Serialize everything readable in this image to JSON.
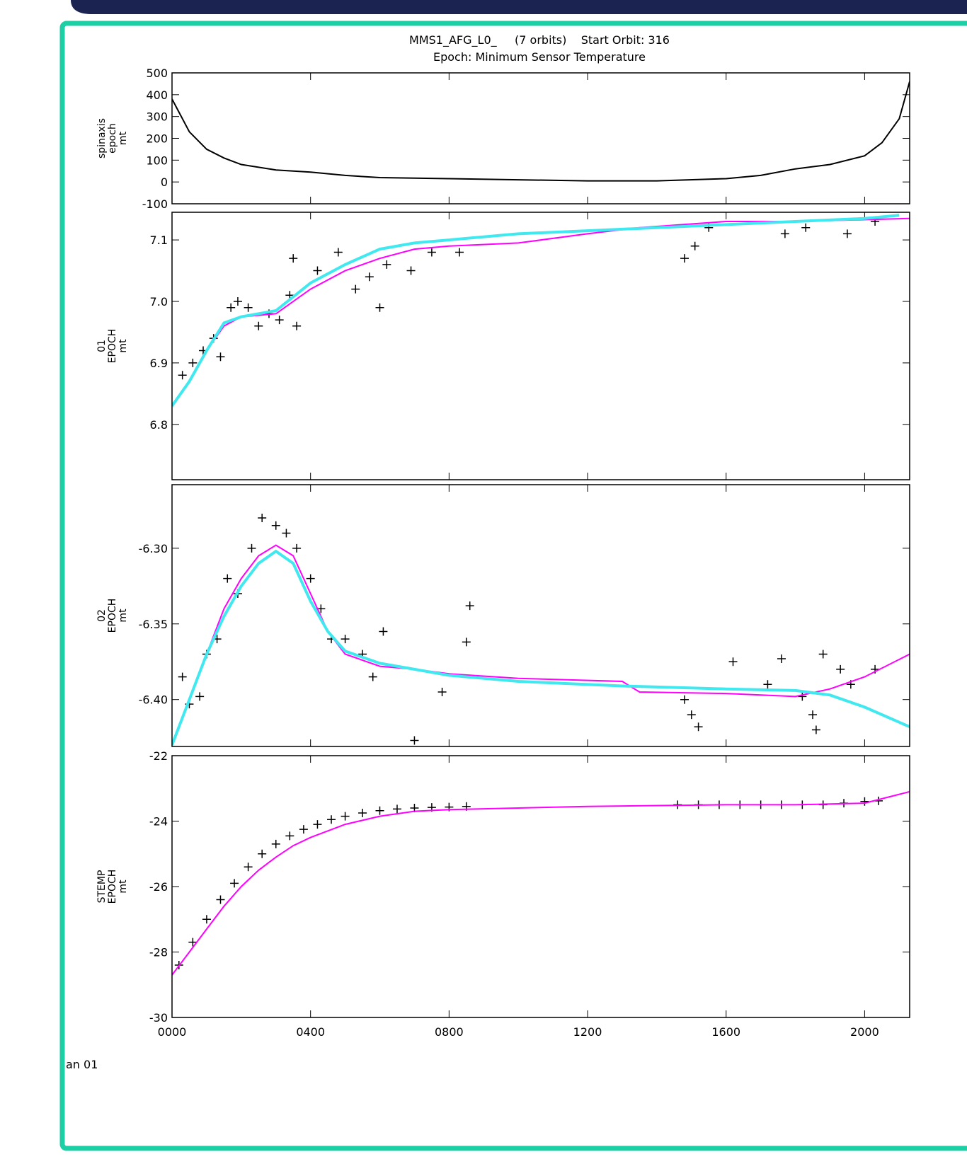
{
  "chart_data": [
    {
      "type": "line",
      "title": "MMS1_AFG_L0_     (7 orbits)    Start Orbit: 316",
      "subtitle": "Epoch: Minimum Sensor Temperature",
      "ylabel": [
        "spinaxis",
        "epoch",
        "mt"
      ],
      "xlim": [
        0,
        21.3
      ],
      "ylim": [
        -100,
        500
      ],
      "yticks": [
        -100,
        0,
        100,
        200,
        300,
        400,
        500
      ],
      "series": [
        {
          "color": "#000000",
          "x": [
            0,
            0.5,
            1,
            1.5,
            2,
            3,
            4,
            5,
            6,
            8,
            10,
            12,
            14,
            16,
            17,
            18,
            19,
            20,
            20.5,
            21,
            21.3
          ],
          "values": [
            380,
            230,
            150,
            110,
            80,
            55,
            45,
            30,
            20,
            15,
            10,
            5,
            5,
            15,
            30,
            60,
            80,
            120,
            180,
            290,
            460
          ]
        }
      ]
    },
    {
      "type": "line",
      "ylabel": [
        "01",
        "EPOCH",
        "mt"
      ],
      "xlim": [
        0,
        21.3
      ],
      "ylim": [
        6.71,
        7.145
      ],
      "yticks": [
        6.8,
        6.9,
        {
          "value": 7,
          "label": "7.0"
        },
        7.1
      ],
      "series": [
        {
          "color": "#000000",
          "marker": "+",
          "x": [
            0.3,
            0.6,
            0.9,
            1.2,
            1.4,
            1.7,
            1.9,
            2.2,
            2.5,
            2.8,
            3.1,
            3.4,
            3.6,
            3.5,
            4.2,
            4.8,
            5.3,
            5.7,
            6.0,
            6.2,
            6.9,
            7.5,
            8.3,
            14.8,
            15.1,
            15.5,
            17.7,
            18.3,
            19.5,
            20.3
          ],
          "values": [
            6.88,
            6.9,
            6.92,
            6.94,
            6.91,
            6.99,
            7.0,
            6.99,
            6.96,
            6.98,
            6.97,
            7.01,
            6.96,
            7.07,
            7.05,
            7.08,
            7.02,
            7.04,
            6.99,
            7.06,
            7.05,
            7.08,
            7.08,
            7.07,
            7.09,
            7.12,
            7.11,
            7.12,
            7.11,
            7.13
          ]
        },
        {
          "color": "#ff00ff",
          "x": [
            0,
            0.5,
            1,
            1.5,
            2,
            3,
            4,
            5,
            6,
            7,
            8,
            10,
            12,
            13.5,
            16,
            18,
            21.3
          ],
          "values": [
            6.83,
            6.87,
            6.92,
            6.96,
            6.975,
            6.98,
            7.02,
            7.05,
            7.07,
            7.085,
            7.09,
            7.095,
            7.11,
            7.12,
            7.13,
            7.13,
            7.135
          ]
        },
        {
          "color": "#40e8f0",
          "x": [
            0,
            0.5,
            1,
            1.5,
            2,
            3,
            4,
            5,
            6,
            7,
            8,
            10,
            12,
            14,
            16,
            18,
            20,
            21
          ],
          "values": [
            6.83,
            6.87,
            6.92,
            6.965,
            6.975,
            6.985,
            7.03,
            7.06,
            7.085,
            7.095,
            7.1,
            7.11,
            7.115,
            7.12,
            7.125,
            7.13,
            7.135,
            7.14
          ]
        }
      ]
    },
    {
      "type": "line",
      "ylabel": [
        "02",
        "EPOCH",
        "mt"
      ],
      "xlim": [
        0,
        21.3
      ],
      "ylim": [
        -6.431,
        -6.258
      ],
      "yticks": [
        {
          "value": -6.4,
          "label": "-6.40"
        },
        -6.35,
        {
          "value": -6.3,
          "label": "-6.30"
        }
      ],
      "series": [
        {
          "color": "#000000",
          "marker": "+",
          "x": [
            0.3,
            0.5,
            0.8,
            1.0,
            1.3,
            1.6,
            1.9,
            2.3,
            2.6,
            3.0,
            3.3,
            3.6,
            4.0,
            4.3,
            4.6,
            5.0,
            5.5,
            5.8,
            6.1,
            7.0,
            7.8,
            8.5,
            8.6,
            14.8,
            15.0,
            15.2,
            16.2,
            17.2,
            17.6,
            18.2,
            18.5,
            18.6,
            18.8,
            19.3,
            19.6,
            20.3
          ],
          "values": [
            -6.385,
            -6.403,
            -6.398,
            -6.37,
            -6.36,
            -6.32,
            -6.33,
            -6.3,
            -6.28,
            -6.285,
            -6.29,
            -6.3,
            -6.32,
            -6.34,
            -6.36,
            -6.36,
            -6.37,
            -6.385,
            -6.355,
            -6.427,
            -6.395,
            -6.362,
            -6.338,
            -6.4,
            -6.41,
            -6.418,
            -6.375,
            -6.39,
            -6.373,
            -6.398,
            -6.41,
            -6.42,
            -6.37,
            -6.38,
            -6.39,
            -6.38
          ]
        },
        {
          "color": "#ff00ff",
          "x": [
            0,
            0.5,
            1,
            1.5,
            2,
            2.5,
            3,
            3.5,
            4,
            4.5,
            5,
            6,
            7,
            8,
            10,
            13,
            13.5,
            16,
            18,
            19,
            20,
            21.3
          ],
          "values": [
            -6.43,
            -6.4,
            -6.37,
            -6.34,
            -6.32,
            -6.305,
            -6.298,
            -6.305,
            -6.33,
            -6.355,
            -6.37,
            -6.378,
            -6.38,
            -6.383,
            -6.386,
            -6.388,
            -6.395,
            -6.396,
            -6.398,
            -6.393,
            -6.385,
            -6.37
          ]
        },
        {
          "color": "#40e8f0",
          "x": [
            0,
            0.5,
            1,
            1.5,
            2,
            2.5,
            3,
            3.5,
            4,
            4.5,
            5,
            6,
            7,
            8,
            10,
            13,
            16,
            18,
            19,
            20,
            21.3
          ],
          "values": [
            -6.43,
            -6.4,
            -6.37,
            -6.345,
            -6.325,
            -6.31,
            -6.302,
            -6.31,
            -6.335,
            -6.355,
            -6.368,
            -6.376,
            -6.38,
            -6.384,
            -6.388,
            -6.391,
            -6.393,
            -6.394,
            -6.397,
            -6.405,
            -6.418
          ]
        }
      ]
    },
    {
      "type": "line",
      "ylabel": [
        "STEMP",
        "EPOCH",
        "mt"
      ],
      "xlabel": "an 01",
      "xlim": [
        0,
        21.3
      ],
      "ylim": [
        -30,
        -22
      ],
      "yticks": [
        -30,
        -28,
        -26,
        -24,
        -22
      ],
      "xticks": [
        {
          "value": 0,
          "label": "0000"
        },
        {
          "value": 4,
          "label": "0400"
        },
        {
          "value": 8,
          "label": "0800"
        },
        {
          "value": 12,
          "label": "1200"
        },
        {
          "value": 16,
          "label": "1600"
        },
        {
          "value": 20,
          "label": "2000"
        }
      ],
      "series": [
        {
          "color": "#000000",
          "marker": "+",
          "x": [
            0.2,
            0.6,
            1.0,
            1.4,
            1.8,
            2.2,
            2.6,
            3.0,
            3.4,
            3.8,
            4.2,
            4.6,
            5.0,
            5.5,
            6.0,
            6.5,
            7.0,
            7.5,
            8.0,
            8.5,
            14.6,
            15.2,
            15.8,
            16.4,
            17.0,
            17.6,
            18.2,
            18.8,
            19.4,
            20.0,
            20.4
          ],
          "values": [
            -28.4,
            -27.7,
            -27.0,
            -26.4,
            -25.9,
            -25.4,
            -25.0,
            -24.7,
            -24.45,
            -24.25,
            -24.1,
            -23.95,
            -23.85,
            -23.75,
            -23.68,
            -23.63,
            -23.6,
            -23.58,
            -23.57,
            -23.55,
            -23.5,
            -23.5,
            -23.5,
            -23.5,
            -23.5,
            -23.5,
            -23.5,
            -23.5,
            -23.45,
            -23.4,
            -23.38
          ]
        },
        {
          "color": "#ff00ff",
          "x": [
            0,
            0.5,
            1,
            1.5,
            2,
            2.5,
            3,
            3.5,
            4,
            5,
            6,
            7,
            8,
            10,
            12,
            16,
            18,
            20,
            21.3
          ],
          "values": [
            -28.7,
            -28.0,
            -27.3,
            -26.6,
            -26.0,
            -25.5,
            -25.1,
            -24.75,
            -24.5,
            -24.1,
            -23.85,
            -23.7,
            -23.65,
            -23.6,
            -23.55,
            -23.5,
            -23.5,
            -23.45,
            -23.1
          ]
        }
      ]
    }
  ]
}
